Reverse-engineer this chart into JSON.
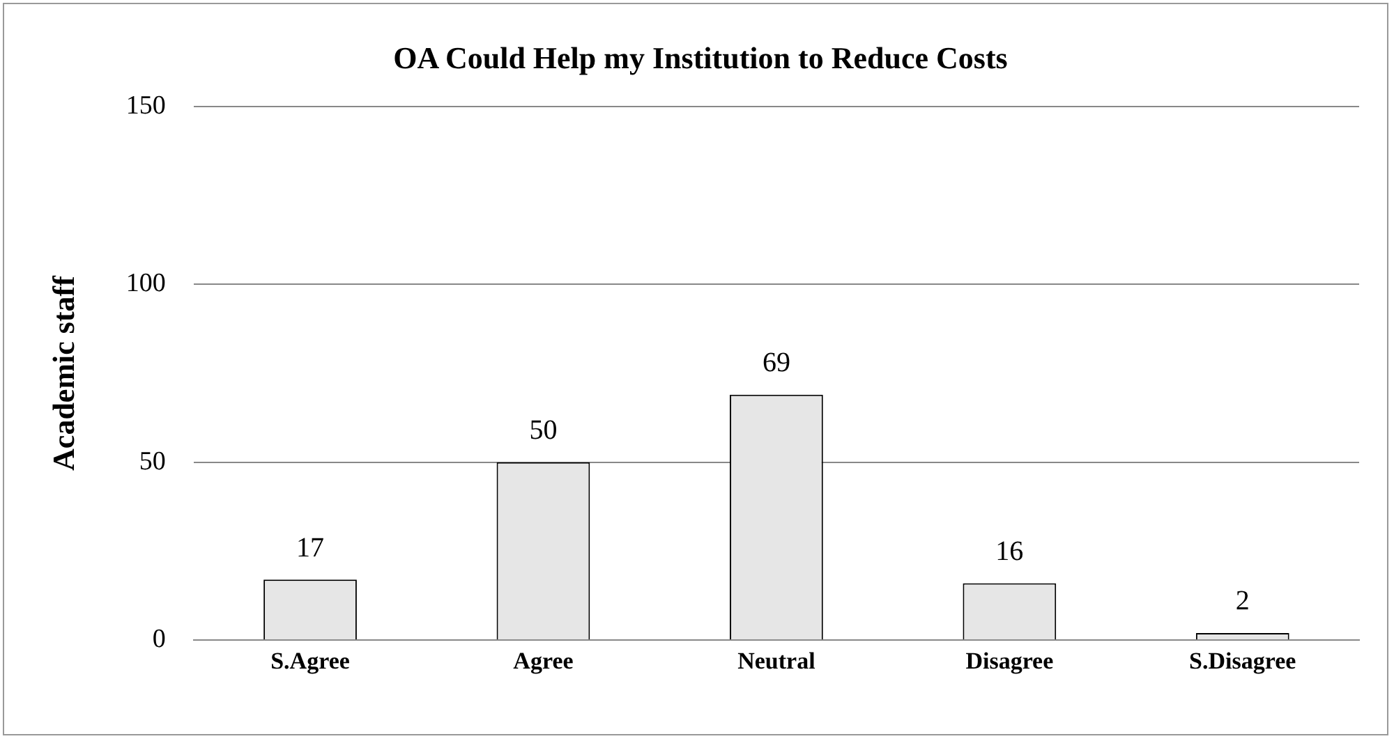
{
  "chart_data": {
    "type": "bar",
    "title": "OA Could Help my Institution to Reduce Costs",
    "ylabel": "Academic staff",
    "categories": [
      "S.Agree",
      "Agree",
      "Neutral",
      "Disagree",
      "S.Disagree"
    ],
    "values": [
      17,
      50,
      69,
      16,
      2
    ],
    "color": "#e6e6e6",
    "ylim": [
      0,
      150
    ],
    "yticks": [
      0,
      50,
      100,
      150
    ],
    "grid": "y",
    "data_labels": true
  }
}
